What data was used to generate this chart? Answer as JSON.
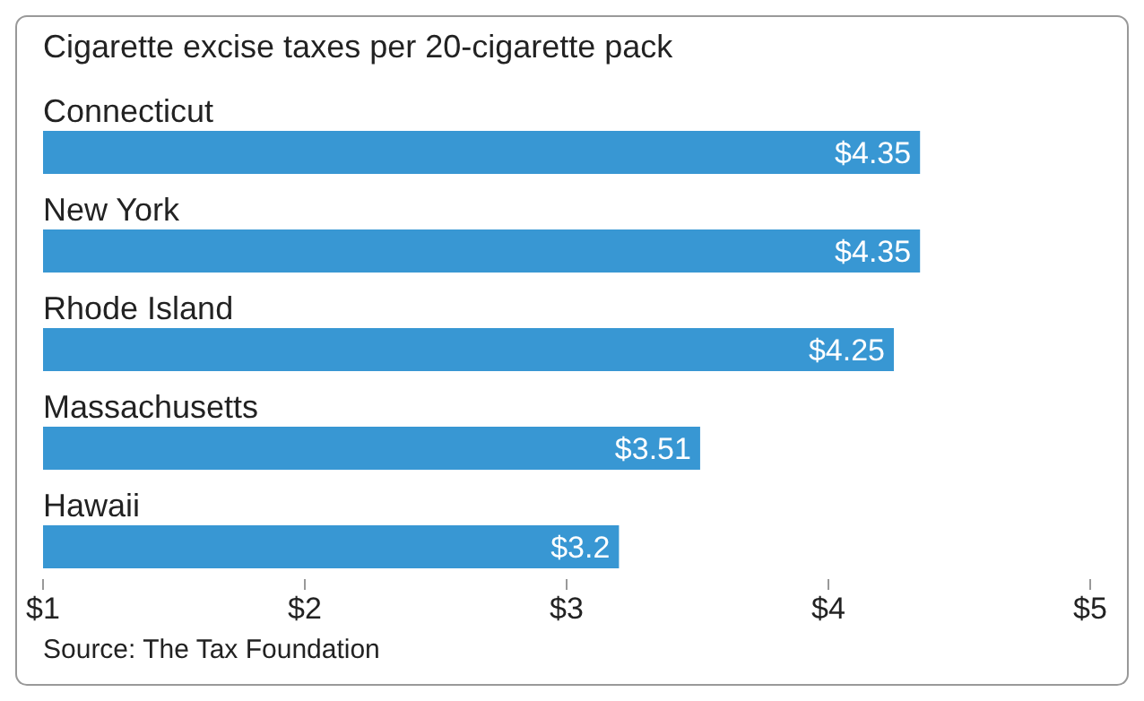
{
  "chart_data": {
    "type": "bar",
    "orientation": "horizontal",
    "title": "Cigarette excise taxes per 20-cigarette pack",
    "categories": [
      "Connecticut",
      "New York",
      "Rhode Island",
      "Massachusetts",
      "Hawaii"
    ],
    "values": [
      4.35,
      4.35,
      4.25,
      3.51,
      3.2
    ],
    "color": "#3897d3",
    "value_labels": [
      "$4.35",
      "$4.35",
      "$4.25",
      "$3.51",
      "$3.2"
    ],
    "xlim": [
      1,
      5
    ],
    "xticks": [
      {
        "value": 1,
        "label": "$1"
      },
      {
        "value": 2,
        "label": "$2"
      },
      {
        "value": 3,
        "label": "$3"
      },
      {
        "value": 4,
        "label": "$4"
      },
      {
        "value": 5,
        "label": "$5"
      }
    ],
    "annotations": [
      "Source: The Tax Foundation"
    ]
  }
}
